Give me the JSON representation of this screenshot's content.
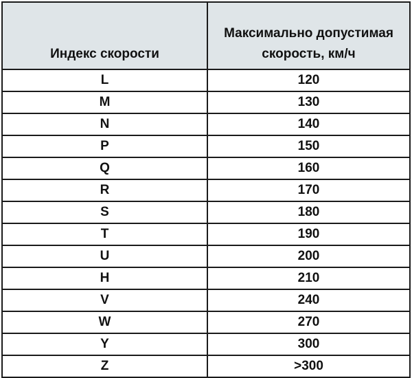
{
  "table": {
    "headers": [
      "Индекс скорости",
      "Максимально допустимая скорость, км/ч"
    ],
    "header_bg": "#dfe5e8",
    "rows": [
      [
        "L",
        "120"
      ],
      [
        "M",
        "130"
      ],
      [
        "N",
        "140"
      ],
      [
        "P",
        "150"
      ],
      [
        "Q",
        "160"
      ],
      [
        "R",
        "170"
      ],
      [
        "S",
        "180"
      ],
      [
        "T",
        "190"
      ],
      [
        "U",
        "200"
      ],
      [
        "H",
        "210"
      ],
      [
        "V",
        "240"
      ],
      [
        "W",
        "270"
      ],
      [
        "Y",
        "300"
      ],
      [
        "Z",
        ">300"
      ]
    ]
  }
}
